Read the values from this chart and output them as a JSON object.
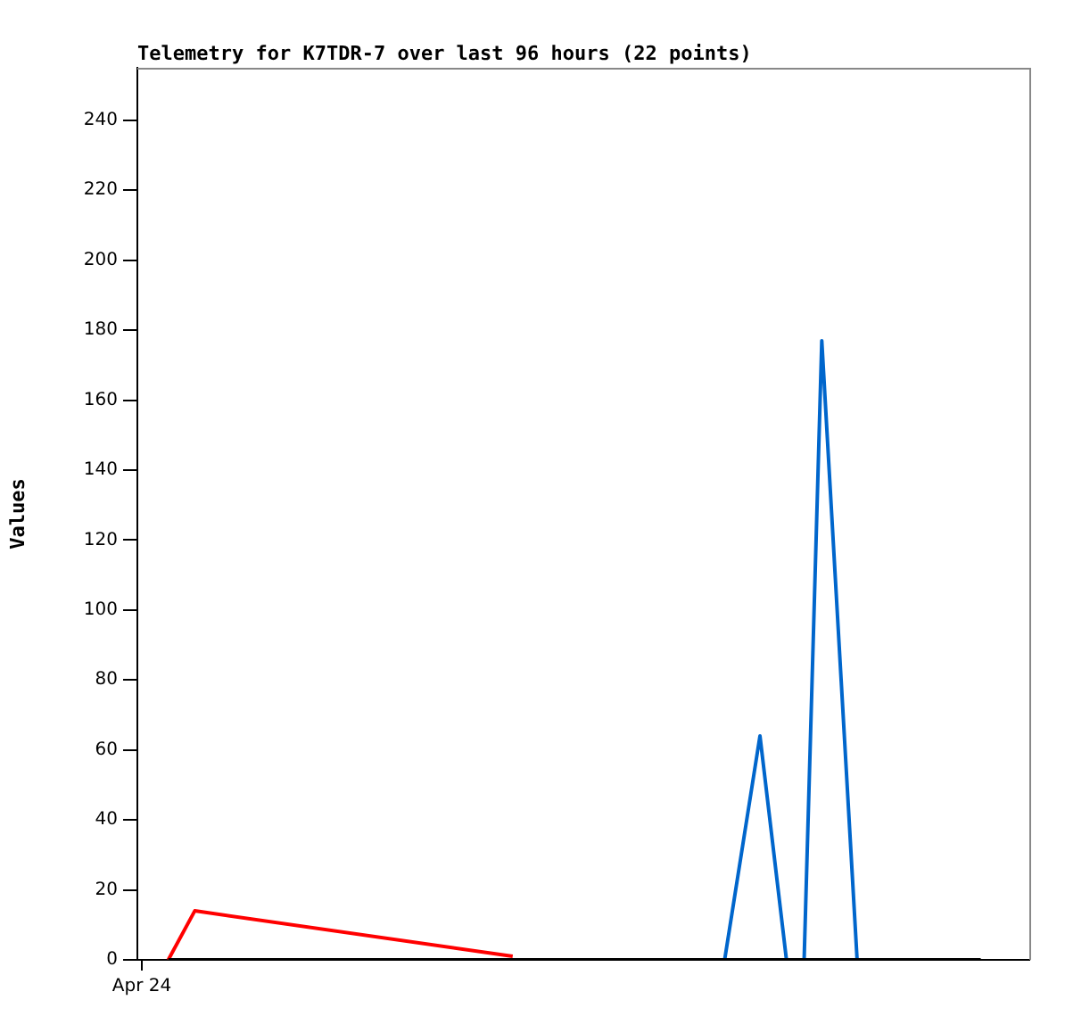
{
  "chart_data": {
    "type": "line",
    "title": "Telemetry for K7TDR-7 over last 96 hours (22 points)",
    "ylabel": "Values",
    "ylim": [
      0,
      255
    ],
    "yticks": [
      0,
      20,
      40,
      60,
      80,
      100,
      120,
      140,
      160,
      180,
      200,
      220,
      240
    ],
    "grid": false,
    "marker": "none",
    "legend": false,
    "categories": [
      "Apr 24",
      null,
      null,
      null,
      null,
      null,
      null,
      null,
      null,
      null,
      null,
      null,
      null,
      null,
      null,
      null,
      null,
      null,
      null,
      null,
      null,
      null,
      null,
      null,
      null,
      null,
      null,
      null,
      null,
      null,
      null,
      null,
      null,
      null,
      null,
      null,
      null,
      null,
      null,
      null,
      null,
      null,
      null,
      null,
      null,
      null,
      null,
      null,
      null,
      null,
      null,
      null,
      null,
      null,
      null,
      null,
      null,
      null,
      null,
      null,
      null,
      null,
      null,
      null,
      null,
      null,
      null,
      null,
      null,
      null,
      null,
      null,
      null,
      null,
      null,
      null,
      null,
      null,
      null,
      null,
      null,
      null,
      null,
      null,
      null,
      null,
      null,
      null,
      null,
      null,
      null,
      null,
      null,
      null,
      null,
      null,
      null,
      null,
      null,
      null,
      null
    ],
    "series": [
      {
        "color": "#ff0000",
        "values": [
          null,
          null,
          null,
          0,
          null,
          null,
          14,
          null,
          null,
          null,
          null,
          null,
          null,
          null,
          null,
          null,
          null,
          null,
          null,
          null,
          null,
          null,
          null,
          null,
          null,
          null,
          null,
          null,
          null,
          null,
          null,
          null,
          null,
          null,
          null,
          null,
          null,
          null,
          null,
          null,
          null,
          null,
          1,
          null,
          null,
          null,
          null,
          null,
          null,
          null,
          null,
          null,
          null,
          null,
          null,
          null,
          null,
          null,
          null,
          null,
          null,
          null,
          null,
          null,
          null,
          null,
          null,
          null,
          null,
          null,
          null,
          null,
          null,
          null,
          null,
          null,
          null,
          null,
          null,
          null,
          null,
          null,
          null,
          null,
          null,
          null,
          null,
          null,
          null,
          null,
          null,
          null,
          null,
          null,
          null,
          null,
          null,
          null,
          null,
          null,
          null
        ]
      },
      {
        "color": "#0066cc",
        "values": [
          null,
          null,
          null,
          null,
          null,
          null,
          null,
          null,
          null,
          null,
          null,
          null,
          null,
          null,
          null,
          null,
          null,
          null,
          null,
          null,
          null,
          null,
          null,
          null,
          null,
          null,
          null,
          null,
          null,
          null,
          null,
          null,
          null,
          null,
          null,
          null,
          null,
          null,
          null,
          null,
          null,
          null,
          null,
          null,
          null,
          null,
          null,
          null,
          null,
          null,
          null,
          null,
          null,
          null,
          null,
          null,
          null,
          null,
          null,
          null,
          null,
          null,
          null,
          null,
          null,
          null,
          0,
          null,
          null,
          null,
          64,
          null,
          null,
          0,
          null,
          0,
          null,
          177,
          null,
          null,
          null,
          0,
          null,
          null,
          null,
          null,
          null,
          null,
          null,
          null,
          null,
          null,
          null,
          null,
          null,
          null,
          null,
          null,
          null,
          null,
          null
        ]
      },
      {
        "color": "#000000",
        "values": [
          null,
          null,
          null,
          0,
          null,
          null,
          null,
          null,
          null,
          null,
          null,
          null,
          null,
          null,
          null,
          null,
          null,
          null,
          null,
          null,
          null,
          null,
          null,
          null,
          null,
          null,
          null,
          null,
          null,
          null,
          null,
          null,
          null,
          null,
          null,
          null,
          null,
          null,
          null,
          null,
          null,
          null,
          null,
          null,
          null,
          null,
          null,
          null,
          null,
          null,
          null,
          null,
          null,
          null,
          null,
          null,
          null,
          null,
          null,
          null,
          null,
          null,
          null,
          null,
          null,
          null,
          null,
          null,
          null,
          null,
          null,
          null,
          null,
          null,
          null,
          null,
          null,
          null,
          null,
          null,
          null,
          null,
          null,
          null,
          null,
          null,
          null,
          null,
          null,
          null,
          null,
          null,
          null,
          null,
          null,
          0,
          null,
          null,
          null,
          null,
          null
        ]
      }
    ]
  }
}
